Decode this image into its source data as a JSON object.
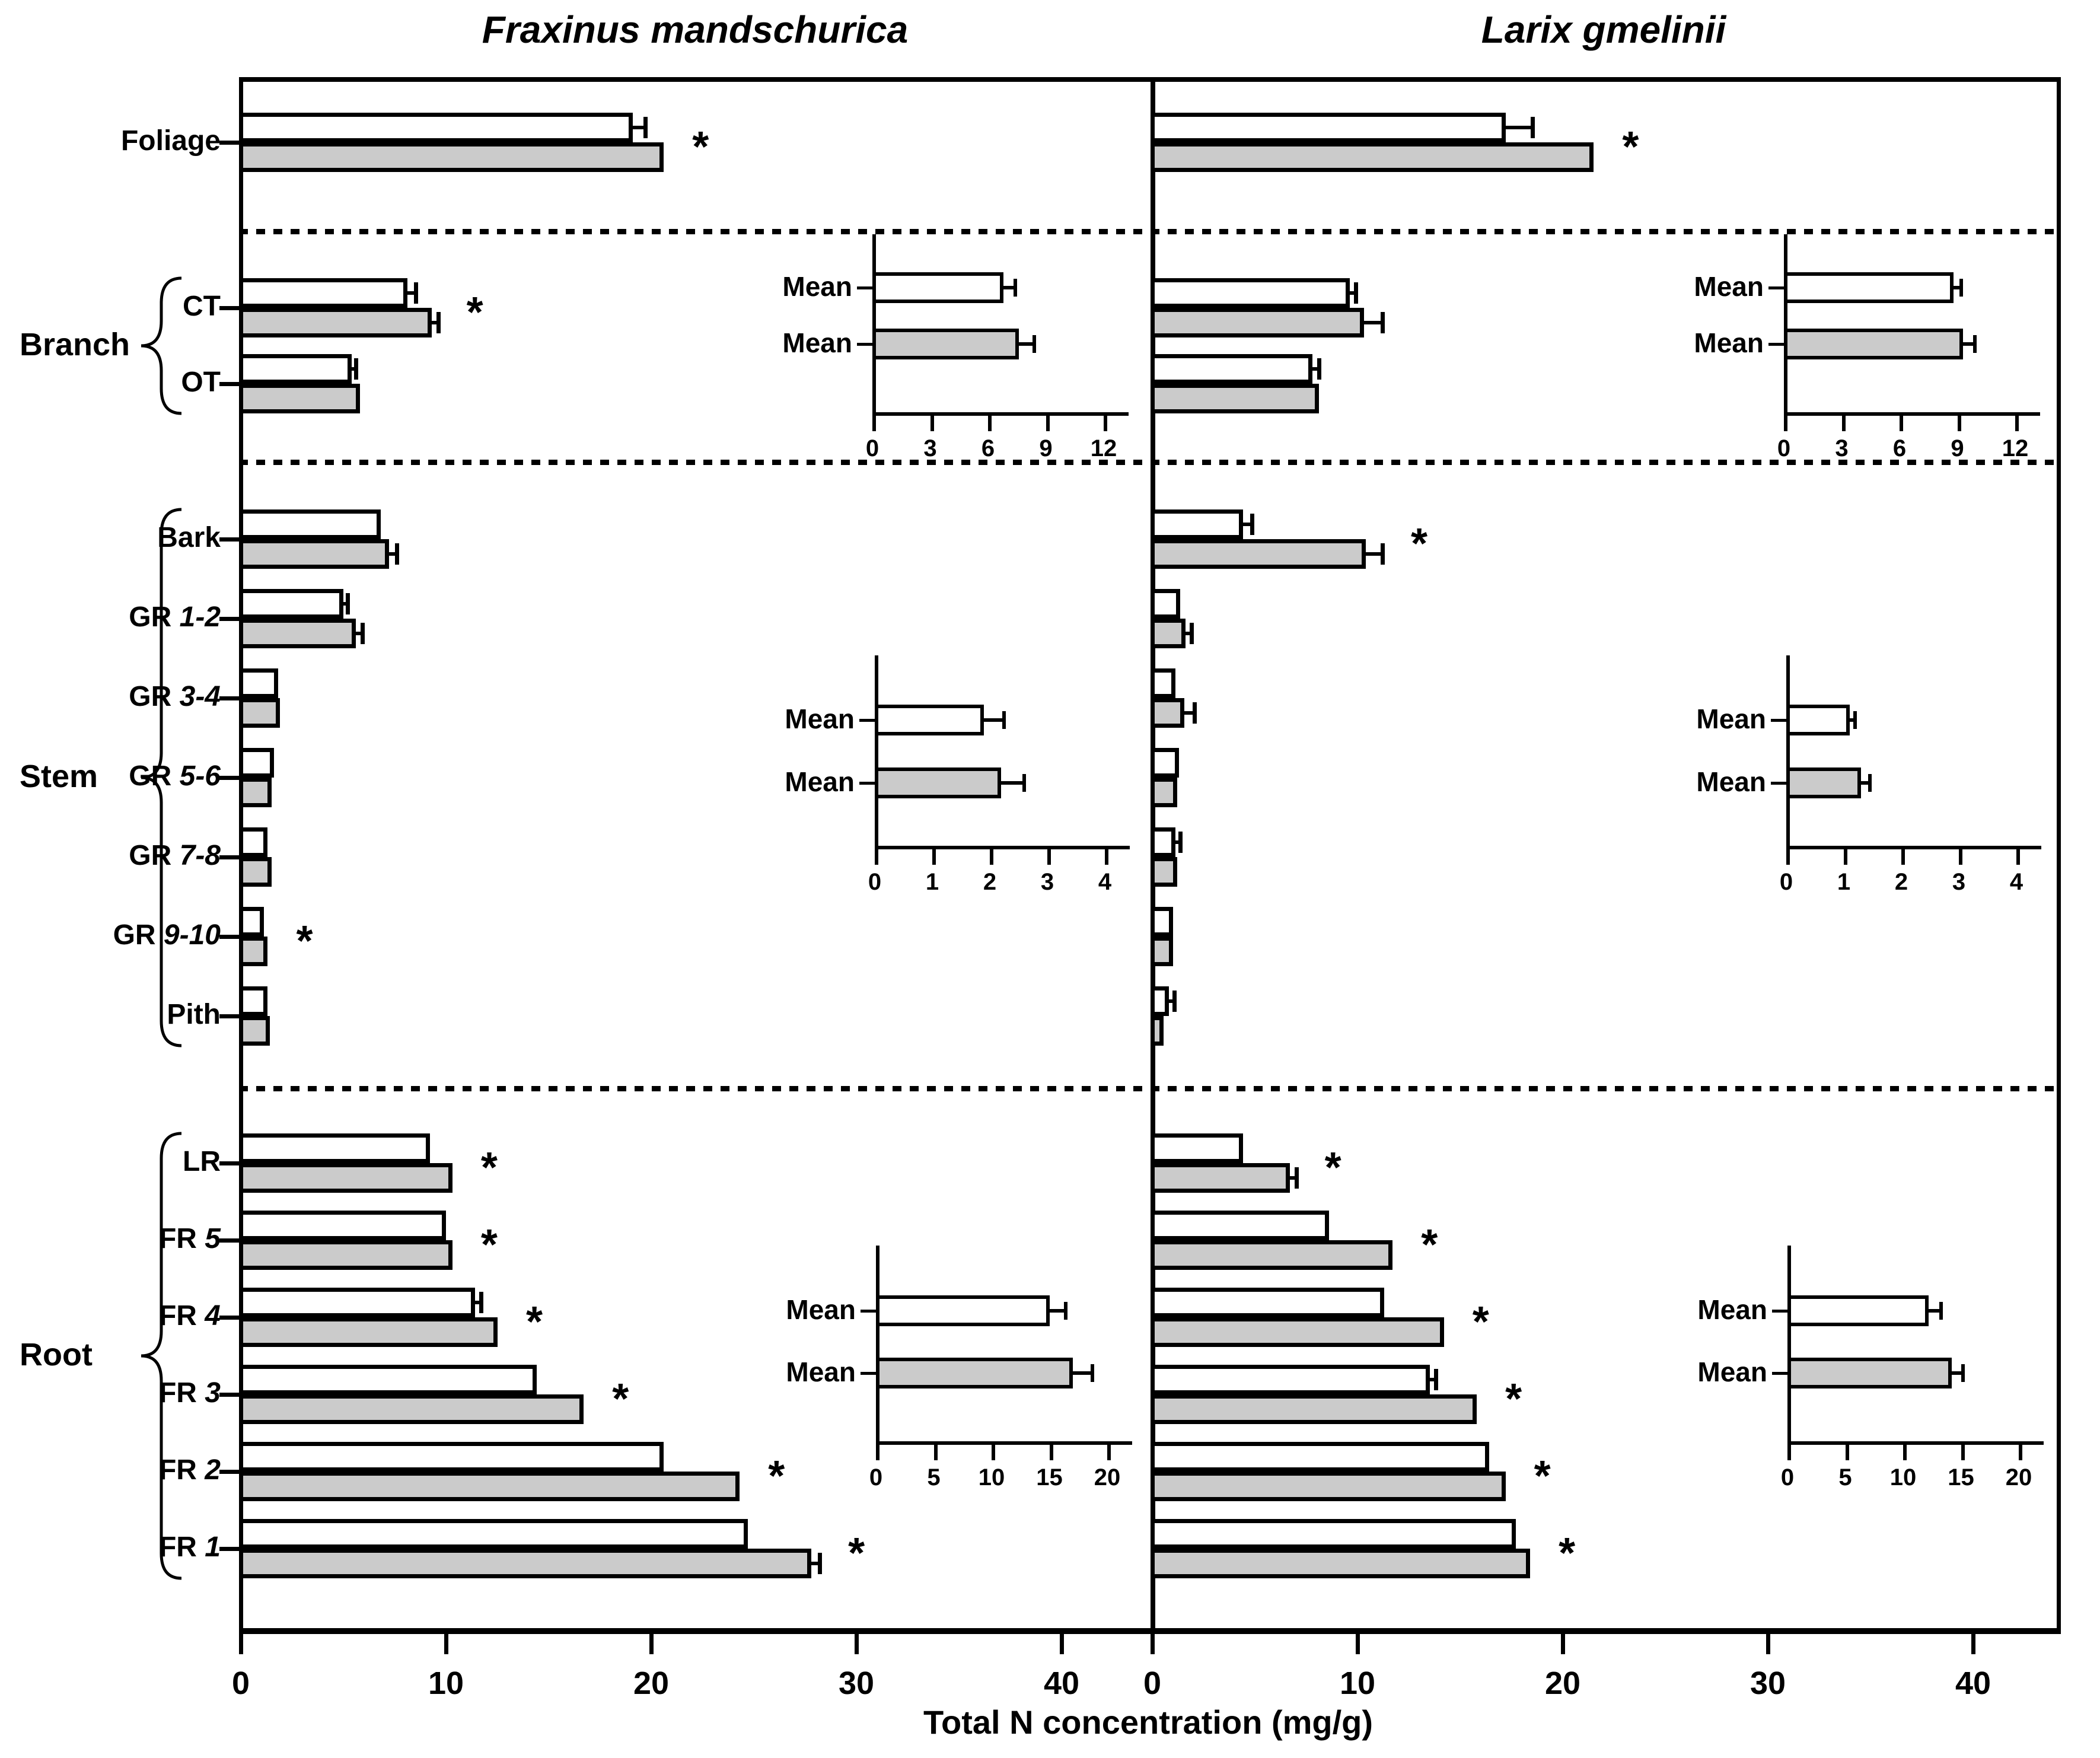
{
  "chart_data": {
    "type": "bar",
    "orientation": "horizontal",
    "xlabel": "Total N concentration (mg/g)",
    "x_ticks": [
      0,
      10,
      20,
      30,
      40
    ],
    "xlim": [
      0,
      44.2
    ],
    "significance_marker": "*",
    "colors": {
      "line": "#000000",
      "open_bar": "#ffffff",
      "filled_bar": "#cbcbcb"
    },
    "series": [
      "open",
      "filled"
    ],
    "panels": [
      {
        "title": "Fraxinus mandschurica",
        "groups": [
          {
            "label": "",
            "rows": [
              {
                "label": "Foliage",
                "open": 19.2,
                "open_err": 0.6,
                "filled": 20.7,
                "filled_err": 0,
                "sig": true
              }
            ]
          },
          {
            "label": "Branch",
            "rows": [
              {
                "label": "CT",
                "open": 8.2,
                "open_err": 0.4,
                "filled": 9.4,
                "filled_err": 0.3,
                "sig": true
              },
              {
                "label": "OT",
                "open": 5.5,
                "open_err": 0.2,
                "filled": 5.9,
                "filled_err": 0,
                "sig": false
              }
            ]
          },
          {
            "label": "Stem",
            "rows": [
              {
                "label": "Bark",
                "open": 6.9,
                "open_err": 0,
                "filled": 7.3,
                "filled_err": 0.4,
                "sig": false
              },
              {
                "label": "GR 1-2",
                "open": 5.1,
                "open_err": 0.2,
                "filled": 5.7,
                "filled_err": 0.3,
                "sig": false
              },
              {
                "label": "GR 3-4",
                "open": 1.9,
                "open_err": 0,
                "filled": 2.0,
                "filled_err": 0,
                "sig": false
              },
              {
                "label": "GR 5-6",
                "open": 1.7,
                "open_err": 0,
                "filled": 1.6,
                "filled_err": 0,
                "sig": false
              },
              {
                "label": "GR 7-8",
                "open": 1.4,
                "open_err": 0,
                "filled": 1.6,
                "filled_err": 0,
                "sig": false
              },
              {
                "label": "GR 9-10",
                "open": 1.2,
                "open_err": 0,
                "filled": 1.4,
                "filled_err": 0,
                "sig": true
              },
              {
                "label": "Pith",
                "open": 1.4,
                "open_err": 0,
                "filled": 1.5,
                "filled_err": 0,
                "sig": false
              }
            ]
          },
          {
            "label": "Root",
            "rows": [
              {
                "label": "LR",
                "open": 9.3,
                "open_err": 0,
                "filled": 10.4,
                "filled_err": 0,
                "sig": true
              },
              {
                "label": "FR 5",
                "open": 10.1,
                "open_err": 0,
                "filled": 10.4,
                "filled_err": 0,
                "sig": true
              },
              {
                "label": "FR 4",
                "open": 11.5,
                "open_err": 0.3,
                "filled": 12.6,
                "filled_err": 0,
                "sig": true
              },
              {
                "label": "FR 3",
                "open": 14.5,
                "open_err": 0,
                "filled": 16.8,
                "filled_err": 0,
                "sig": true
              },
              {
                "label": "FR 2",
                "open": 20.7,
                "open_err": 0,
                "filled": 24.4,
                "filled_err": 0,
                "sig": true
              },
              {
                "label": "FR 1",
                "open": 24.8,
                "open_err": 0,
                "filled": 27.9,
                "filled_err": 0.4,
                "sig": true
              }
            ]
          }
        ],
        "insets": [
          {
            "section": "Branch",
            "x_ticks": [
              0,
              3,
              6,
              9,
              12
            ],
            "rows": [
              {
                "label": "Mean",
                "series": "open",
                "value": 6.8,
                "err": 0.6
              },
              {
                "label": "Mean",
                "series": "filled",
                "value": 7.6,
                "err": 0.8
              }
            ]
          },
          {
            "section": "Stem",
            "x_ticks": [
              0,
              1,
              2,
              3,
              4
            ],
            "rows": [
              {
                "label": "Mean",
                "series": "open",
                "value": 1.9,
                "err": 0.35
              },
              {
                "label": "Mean",
                "series": "filled",
                "value": 2.2,
                "err": 0.4
              }
            ]
          },
          {
            "section": "Root",
            "x_ticks": [
              0,
              5,
              10,
              15,
              20
            ],
            "rows": [
              {
                "label": "Mean",
                "series": "open",
                "value": 15.0,
                "err": 1.4
              },
              {
                "label": "Mean",
                "series": "filled",
                "value": 17.0,
                "err": 1.7
              }
            ]
          }
        ]
      },
      {
        "title": "Larix gmelinii",
        "groups": [
          {
            "label": "",
            "rows": [
              {
                "label": "Foliage",
                "open": 17.3,
                "open_err": 1.3,
                "filled": 21.6,
                "filled_err": 0,
                "sig": true
              }
            ]
          },
          {
            "label": "Branch",
            "rows": [
              {
                "label": "CT",
                "open": 9.7,
                "open_err": 0.3,
                "filled": 10.4,
                "filled_err": 0.9,
                "sig": false
              },
              {
                "label": "OT",
                "open": 7.9,
                "open_err": 0.3,
                "filled": 8.2,
                "filled_err": 0,
                "sig": false
              }
            ]
          },
          {
            "label": "Stem",
            "rows": [
              {
                "label": "Bark",
                "open": 4.5,
                "open_err": 0.45,
                "filled": 10.5,
                "filled_err": 0.8,
                "sig": true
              },
              {
                "label": "GR 1-2",
                "open": 1.45,
                "open_err": 0,
                "filled": 1.7,
                "filled_err": 0.3,
                "sig": false
              },
              {
                "label": "GR 3-4",
                "open": 1.2,
                "open_err": 0,
                "filled": 1.65,
                "filled_err": 0.5,
                "sig": false
              },
              {
                "label": "GR 5-6",
                "open": 1.4,
                "open_err": 0,
                "filled": 1.3,
                "filled_err": 0,
                "sig": false
              },
              {
                "label": "GR 7-8",
                "open": 1.2,
                "open_err": 0.25,
                "filled": 1.3,
                "filled_err": 0,
                "sig": false
              },
              {
                "label": "GR 9-10",
                "open": 1.1,
                "open_err": 0,
                "filled": 1.1,
                "filled_err": 0,
                "sig": false
              },
              {
                "label": "Pith",
                "open": 0.9,
                "open_err": 0.25,
                "filled": 0.65,
                "filled_err": 0,
                "sig": false
              }
            ]
          },
          {
            "label": "Root",
            "rows": [
              {
                "label": "LR",
                "open": 4.5,
                "open_err": 0,
                "filled": 6.8,
                "filled_err": 0.3,
                "sig": true
              },
              {
                "label": "FR 5",
                "open": 8.7,
                "open_err": 0,
                "filled": 11.8,
                "filled_err": 0,
                "sig": true
              },
              {
                "label": "FR 4",
                "open": 11.4,
                "open_err": 0,
                "filled": 14.3,
                "filled_err": 0,
                "sig": true
              },
              {
                "label": "FR 3",
                "open": 13.6,
                "open_err": 0.3,
                "filled": 15.9,
                "filled_err": 0,
                "sig": true
              },
              {
                "label": "FR 2",
                "open": 16.5,
                "open_err": 0,
                "filled": 17.3,
                "filled_err": 0,
                "sig": true
              },
              {
                "label": "FR 1",
                "open": 17.8,
                "open_err": 0,
                "filled": 18.5,
                "filled_err": 0,
                "sig": true
              }
            ]
          }
        ],
        "insets": [
          {
            "section": "Branch",
            "x_ticks": [
              0,
              3,
              6,
              9,
              12
            ],
            "rows": [
              {
                "label": "Mean",
                "series": "open",
                "value": 8.8,
                "err": 0.4
              },
              {
                "label": "Mean",
                "series": "filled",
                "value": 9.3,
                "err": 0.6
              }
            ]
          },
          {
            "section": "Stem",
            "x_ticks": [
              0,
              1,
              2,
              3,
              4
            ],
            "rows": [
              {
                "label": "Mean",
                "series": "open",
                "value": 1.1,
                "err": 0.1
              },
              {
                "label": "Mean",
                "series": "filled",
                "value": 1.3,
                "err": 0.15
              }
            ]
          },
          {
            "section": "Root",
            "x_ticks": [
              0,
              5,
              10,
              15,
              20
            ],
            "rows": [
              {
                "label": "Mean",
                "series": "open",
                "value": 12.2,
                "err": 1.1
              },
              {
                "label": "Mean",
                "series": "filled",
                "value": 14.2,
                "err": 1.0
              }
            ]
          }
        ]
      }
    ]
  }
}
